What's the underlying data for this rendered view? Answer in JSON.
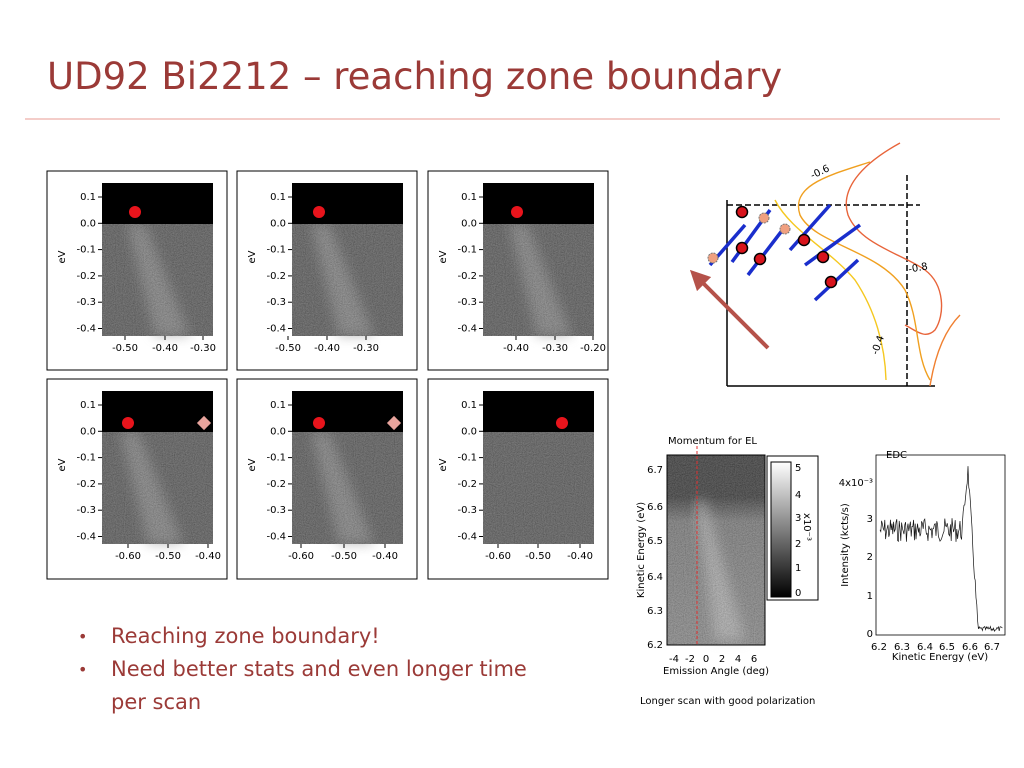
{
  "title": "UD92 Bi2212 – reaching zone boundary",
  "panels": [
    {
      "ylabel": "eV",
      "yticks": [
        "0.1",
        "0.0",
        "-0.1",
        "-0.2",
        "-0.3",
        "-0.4"
      ],
      "xticks": [
        "-0.50",
        "-0.40",
        "-0.30"
      ]
    },
    {
      "ylabel": "eV",
      "yticks": [
        "0.1",
        "0.0",
        "-0.1",
        "-0.2",
        "-0.3",
        "-0.4"
      ],
      "xticks": [
        "-0.50",
        "-0.40",
        "-0.30"
      ]
    },
    {
      "ylabel": "eV",
      "yticks": [
        "0.1",
        "0.0",
        "-0.1",
        "-0.2",
        "-0.3",
        "-0.4"
      ],
      "xticks": [
        "-0.40",
        "-0.30",
        "-0.20"
      ]
    },
    {
      "ylabel": "eV",
      "yticks": [
        "0.1",
        "0.0",
        "-0.1",
        "-0.2",
        "-0.3",
        "-0.4"
      ],
      "xticks": [
        "-0.60",
        "-0.50",
        "-0.40"
      ]
    },
    {
      "ylabel": "eV",
      "yticks": [
        "0.1",
        "0.0",
        "-0.1",
        "-0.2",
        "-0.3",
        "-0.4"
      ],
      "xticks": [
        "-0.60",
        "-0.50",
        "-0.40"
      ]
    },
    {
      "ylabel": "eV",
      "yticks": [
        "0.1",
        "0.0",
        "-0.1",
        "-0.2",
        "-0.3",
        "-0.4"
      ],
      "xticks": [
        "-0.60",
        "-0.50",
        "-0.40"
      ]
    }
  ],
  "bullets": [
    "Reaching zone boundary!",
    "Need better stats and even longer time per scan"
  ],
  "zone_map": {
    "contour_labels": [
      "-0.6",
      "-0.8",
      "-0.4"
    ]
  },
  "spectrum_image": {
    "annotation": "Momentum for EL",
    "ylabel": "Kinetic Energy (eV)",
    "yticks": [
      "6.7",
      "6.6",
      "6.5",
      "6.4",
      "6.3",
      "6.2"
    ],
    "xlabel": "Emission Angle (deg)",
    "xticks": [
      "-4",
      "-2",
      "0",
      "2",
      "4",
      "6"
    ],
    "colorbar_ticks": [
      "5",
      "4",
      "3",
      "2",
      "1",
      "0"
    ],
    "colorbar_label": "x10⁻³",
    "caption": "Longer scan with good polarization"
  },
  "edc": {
    "title": "EDC",
    "ylabel": "Intensity (kcts/s)",
    "yticks": [
      "4x10⁻³",
      "3",
      "2",
      "1",
      "0"
    ],
    "xticks": [
      "6.2",
      "6.3",
      "6.4",
      "6.5",
      "6.6",
      "6.7"
    ],
    "xlabel": "Kinetic Energy (eV)"
  }
}
